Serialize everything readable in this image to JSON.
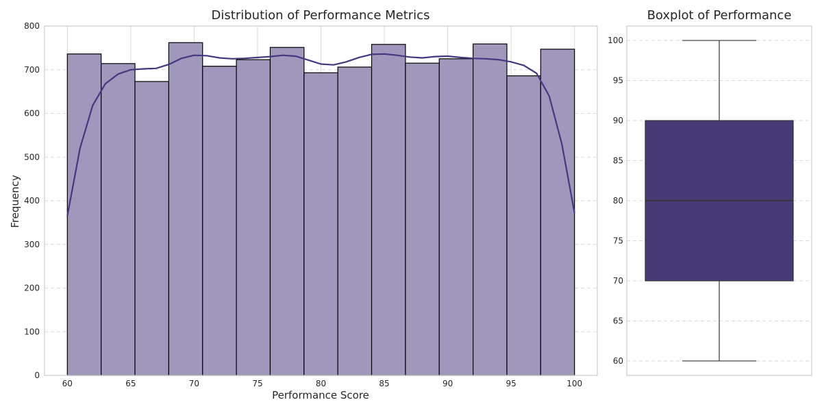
{
  "colors": {
    "hist_fill": "#a197bd",
    "hist_edge": "#000000",
    "kde_line": "#433780",
    "box_fill": "#483a74",
    "box_edge": "#333333",
    "grid": "#d9d9d9",
    "spine": "#cccccc"
  },
  "chart_data": [
    {
      "type": "bar",
      "subtype": "histogram_with_kde",
      "title": "Distribution of Performance Metrics",
      "xlabel": "Performance Score",
      "ylabel": "Frequency",
      "xlim": [
        58.2,
        101.8
      ],
      "ylim": [
        0,
        800
      ],
      "xticks": [
        60,
        65,
        70,
        75,
        80,
        85,
        90,
        95,
        100
      ],
      "yticks": [
        0,
        100,
        200,
        300,
        400,
        500,
        600,
        700,
        800
      ],
      "bin_edges": [
        60,
        62.667,
        65.333,
        68,
        70.667,
        73.333,
        76,
        78.667,
        81.333,
        84,
        86.667,
        89.333,
        92,
        94.667,
        97.333,
        100
      ],
      "values": [
        736,
        714,
        673,
        762,
        708,
        723,
        751,
        693,
        706,
        758,
        715,
        725,
        759,
        686,
        747
      ],
      "kde": {
        "x": [
          60,
          61,
          62,
          63,
          64,
          65,
          66,
          67,
          68,
          69,
          70,
          71,
          72,
          73,
          74,
          75,
          76,
          77,
          78,
          79,
          80,
          81,
          82,
          83,
          84,
          85,
          86,
          87,
          88,
          89,
          90,
          91,
          92,
          93,
          94,
          95,
          96,
          97,
          98,
          99,
          100
        ],
        "y": [
          365,
          520,
          618,
          668,
          690,
          700,
          702,
          703,
          712,
          726,
          733,
          732,
          727,
          725,
          726,
          728,
          730,
          733,
          731,
          722,
          713,
          711,
          718,
          728,
          735,
          736,
          733,
          729,
          727,
          730,
          731,
          728,
          726,
          725,
          723,
          718,
          710,
          692,
          640,
          530,
          372
        ]
      },
      "grid": true,
      "legend": "none"
    },
    {
      "type": "box",
      "title": "Boxplot of Performance",
      "ylim": [
        58.2,
        101.8
      ],
      "yticks": [
        60,
        65,
        70,
        75,
        80,
        85,
        90,
        95,
        100
      ],
      "whisker_low": 60,
      "q1": 70,
      "median": 80,
      "q3": 90,
      "whisker_high": 100,
      "grid": true
    }
  ]
}
